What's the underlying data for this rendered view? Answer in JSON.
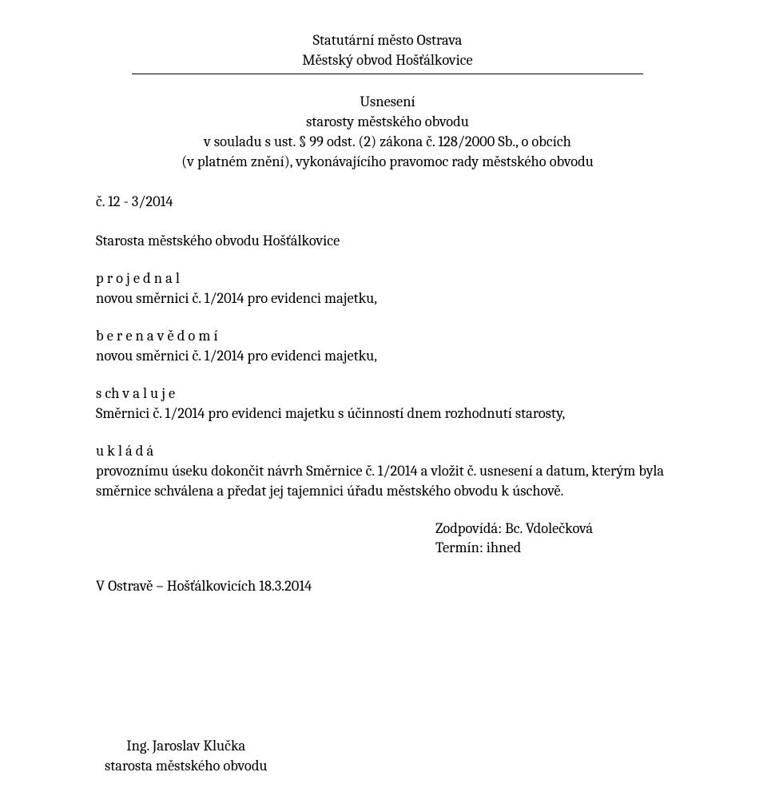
{
  "header": {
    "city": "Statutární město Ostrava",
    "district": "Městský obvod Hošťálkovice"
  },
  "resolution": {
    "title": "Usnesení",
    "line2": "starosty městského obvodu",
    "line3": "v souladu s ust. § 99 odst. (2) zákona č. 128/2000 Sb., o obcích",
    "line4": "(v platném znění), vykonávajícího pravomoc rady městského obvodu"
  },
  "refNumber": "č. 12 - 3/2014",
  "p1": {
    "line1": "Starosta městského obvodu Hošťálkovice"
  },
  "p2": {
    "label": "p r o j e d n a l",
    "line": "novou směrnici č. 1/2014 pro evidenci majetku,"
  },
  "p3": {
    "label": "b e r e   n a   v ě d o m í",
    "line": "novou směrnici č. 1/2014 pro evidenci majetku,"
  },
  "p4": {
    "label": "s ch v a l u j e",
    "line": "Směrnici č. 1/2014 pro evidenci majetku s účinností dnem rozhodnutí starosty,"
  },
  "p5": {
    "label": "u k l á d á",
    "line": "provoznímu úseku dokončit návrh Směrnice č. 1/2014 a vložit č. usnesení a datum, kterým byla směrnice schválena a předat jej tajemnici úřadu městského obvodu k úschově."
  },
  "responsible": {
    "line1": "Zodpovídá: Bc. Vdolečková",
    "line2": "Termín: ihned"
  },
  "dateLine": "V Ostravě – Hošťálkovicích  18.3.2014",
  "signature": {
    "name": "Ing. Jaroslav Klučka",
    "title": "starosta městského obvodu"
  }
}
